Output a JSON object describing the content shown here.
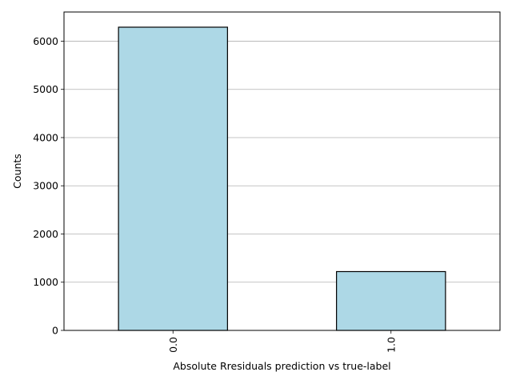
{
  "chart_data": {
    "type": "bar",
    "categories": [
      "0.0",
      "1.0"
    ],
    "values": [
      6290,
      1220
    ],
    "title": "",
    "xlabel": "Absolute Rresiduals prediction vs true-label",
    "ylabel": "Counts",
    "ylim": [
      0,
      6605
    ],
    "yticks": [
      0,
      1000,
      2000,
      3000,
      4000,
      5000,
      6000
    ],
    "grid": "y",
    "legend": "none",
    "colors": {
      "bar_fill": "#add8e6",
      "bar_edge": "#000000",
      "grid": "#b0b0b0",
      "axis": "#000000"
    }
  }
}
